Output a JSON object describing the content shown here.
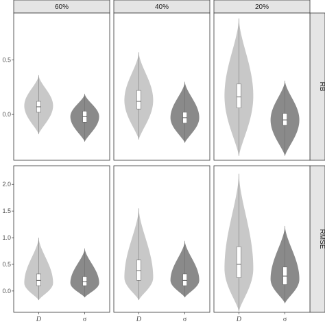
{
  "chart_data": {
    "type": "violin",
    "facets": {
      "columns": [
        "60%",
        "40%",
        "20%"
      ],
      "rows": [
        "RB",
        "RMSE"
      ]
    },
    "categories": [
      "D",
      "σ"
    ],
    "colors": {
      "D": "#c8c8c8",
      "σ": "#8a8a8a",
      "strip": "#e5e5e5"
    },
    "panels": [
      {
        "row": "RB",
        "column": "60%",
        "violins": [
          {
            "category": "D",
            "min": -0.18,
            "max": 0.36,
            "mode": 0.08,
            "q1": 0.02,
            "median": 0.07,
            "q3": 0.12
          },
          {
            "category": "σ",
            "min": -0.25,
            "max": 0.19,
            "mode": -0.02,
            "q1": -0.07,
            "median": -0.02,
            "q3": 0.03
          }
        ]
      },
      {
        "row": "RB",
        "column": "40%",
        "violins": [
          {
            "category": "D",
            "min": -0.23,
            "max": 0.57,
            "mode": 0.13,
            "q1": 0.05,
            "median": 0.12,
            "q3": 0.22
          },
          {
            "category": "σ",
            "min": -0.26,
            "max": 0.3,
            "mode": -0.03,
            "q1": -0.08,
            "median": -0.03,
            "q3": 0.02
          }
        ]
      },
      {
        "row": "RB",
        "column": "20%",
        "violins": [
          {
            "category": "D",
            "min": -0.38,
            "max": 0.88,
            "mode": 0.17,
            "q1": 0.06,
            "median": 0.16,
            "q3": 0.28
          },
          {
            "category": "σ",
            "min": -0.38,
            "max": 0.31,
            "mode": -0.05,
            "q1": -0.1,
            "median": -0.05,
            "q3": 0.01
          }
        ]
      },
      {
        "row": "RMSE",
        "column": "60%",
        "violins": [
          {
            "category": "D",
            "min": -0.17,
            "max": 1.0,
            "mode": 0.15,
            "q1": 0.1,
            "median": 0.2,
            "q3": 0.32
          },
          {
            "category": "σ",
            "min": -0.12,
            "max": 0.8,
            "mode": 0.15,
            "q1": 0.1,
            "median": 0.17,
            "q3": 0.27
          }
        ]
      },
      {
        "row": "RMSE",
        "column": "40%",
        "violins": [
          {
            "category": "D",
            "min": -0.17,
            "max": 1.55,
            "mode": 0.25,
            "q1": 0.2,
            "median": 0.38,
            "q3": 0.58
          },
          {
            "category": "σ",
            "min": -0.12,
            "max": 0.94,
            "mode": 0.2,
            "q1": 0.1,
            "median": 0.2,
            "q3": 0.32
          }
        ]
      },
      {
        "row": "RMSE",
        "column": "20%",
        "violins": [
          {
            "category": "D",
            "min": -0.38,
            "max": 2.2,
            "mode": 0.42,
            "q1": 0.25,
            "median": 0.5,
            "q3": 0.83
          },
          {
            "category": "σ",
            "min": -0.23,
            "max": 1.22,
            "mode": 0.22,
            "q1": 0.12,
            "median": 0.28,
            "q3": 0.45
          }
        ]
      }
    ],
    "y_axes": {
      "RB": {
        "ylim": [
          -0.42,
          0.93
        ],
        "ticks": [
          0.0,
          0.5
        ],
        "tick_labels": [
          "0.0",
          "0.5"
        ]
      },
      "RMSE": {
        "ylim": [
          -0.4,
          2.35
        ],
        "ticks": [
          0.0,
          0.5,
          1.0,
          1.5,
          2.0
        ],
        "tick_labels": [
          "0.0",
          "0.5",
          "1.0",
          "1.5",
          "2.0"
        ]
      }
    },
    "x_tick_labels": [
      "D",
      "σ"
    ],
    "title": "",
    "xlabel": "",
    "ylabel": "",
    "grid": false,
    "legend": "none"
  }
}
